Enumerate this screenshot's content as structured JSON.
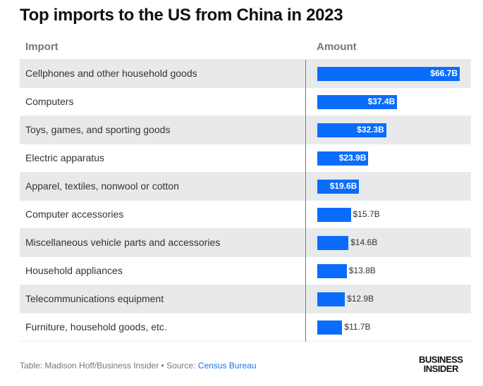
{
  "chart_data": {
    "type": "table",
    "title": "Top imports to the US from China in 2023",
    "columns": [
      "Import",
      "Amount"
    ],
    "categories": [
      "Cellphones and other household goods",
      "Computers",
      "Toys, games, and sporting goods",
      "Electric apparatus",
      "Apparel, textiles, nonwool or cotton",
      "Computer accessories",
      "Miscellaneous vehicle parts and accessories",
      "Household appliances",
      "Telecommunications equipment",
      "Furniture, household goods, etc."
    ],
    "values": [
      66.7,
      37.4,
      32.3,
      23.9,
      19.6,
      15.7,
      14.6,
      13.8,
      12.9,
      11.7
    ],
    "value_labels": [
      "$66.7B",
      "$37.4B",
      "$32.3B",
      "$23.9B",
      "$19.6B",
      "$15.7B",
      "$14.6B",
      "$13.8B",
      "$12.9B",
      "$11.7B"
    ],
    "bar_color": "#0a6cfa"
  },
  "footer": {
    "credit": "Table: Madison Hoff/Business Insider • Source: ",
    "source_link": "Census Bureau"
  },
  "logo": {
    "line1": "BUSINESS",
    "line2": "INSIDER"
  }
}
